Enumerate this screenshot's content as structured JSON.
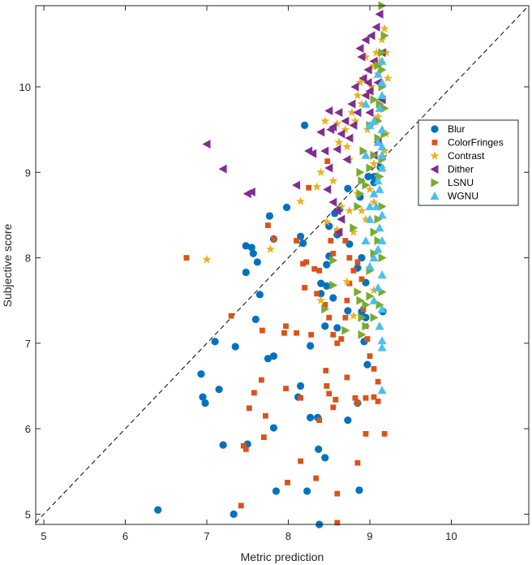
{
  "chart_data": {
    "type": "scatter",
    "xlabel": "Metric prediction",
    "ylabel": "Subjective score",
    "xlim": [
      4.9,
      10.95
    ],
    "ylim": [
      4.88,
      10.95
    ],
    "x_ticks": [
      5,
      6,
      7,
      8,
      9,
      10
    ],
    "y_ticks": [
      5,
      6,
      7,
      8,
      9,
      10
    ],
    "grid": false,
    "legend_position": "right",
    "reference_line": {
      "type": "identity",
      "style": "dashed",
      "color": "#000000"
    },
    "series": [
      {
        "name": "Blur",
        "marker": "circle",
        "color": "#0072BD",
        "points": [
          [
            6.4,
            5.05
          ],
          [
            7.33,
            5.0
          ],
          [
            8.38,
            4.88
          ],
          [
            8.87,
            5.28
          ],
          [
            7.85,
            5.27
          ],
          [
            8.23,
            5.27
          ],
          [
            8.45,
            5.66
          ],
          [
            8.37,
            5.76
          ],
          [
            7.2,
            5.81
          ],
          [
            7.5,
            5.82
          ],
          [
            7.82,
            6.01
          ],
          [
            8.27,
            6.13
          ],
          [
            8.36,
            6.13
          ],
          [
            8.73,
            6.1
          ],
          [
            6.95,
            6.37
          ],
          [
            6.98,
            6.3
          ],
          [
            7.15,
            6.46
          ],
          [
            8.12,
            6.37
          ],
          [
            8.15,
            6.5
          ],
          [
            8.85,
            6.3
          ],
          [
            6.93,
            6.64
          ],
          [
            8.97,
            6.75
          ],
          [
            8.93,
            7.02
          ],
          [
            7.1,
            7.02
          ],
          [
            7.35,
            6.96
          ],
          [
            7.75,
            6.82
          ],
          [
            7.82,
            6.85
          ],
          [
            8.27,
            6.97
          ],
          [
            8.45,
            7.2
          ],
          [
            8.6,
            7.18
          ],
          [
            8.73,
            7.38
          ],
          [
            8.9,
            7.37
          ],
          [
            8.95,
            7.3
          ],
          [
            9.16,
            7.37
          ],
          [
            7.6,
            7.28
          ],
          [
            8.4,
            7.58
          ],
          [
            8.47,
            7.67
          ],
          [
            8.4,
            7.7
          ],
          [
            8.55,
            7.53
          ],
          [
            8.95,
            7.71
          ],
          [
            7.48,
            7.83
          ],
          [
            7.65,
            7.57
          ],
          [
            7.55,
            8.12
          ],
          [
            7.57,
            8.05
          ],
          [
            7.62,
            7.95
          ],
          [
            7.48,
            8.14
          ],
          [
            7.82,
            8.22
          ],
          [
            8.15,
            8.25
          ],
          [
            8.18,
            8.17
          ],
          [
            8.47,
            7.92
          ],
          [
            8.5,
            8.02
          ],
          [
            8.85,
            7.88
          ],
          [
            8.9,
            8.0
          ],
          [
            7.77,
            8.49
          ],
          [
            7.98,
            8.59
          ],
          [
            8.5,
            8.37
          ],
          [
            8.6,
            8.27
          ],
          [
            8.75,
            8.16
          ],
          [
            8.57,
            8.52
          ],
          [
            8.73,
            8.81
          ],
          [
            8.88,
            8.71
          ],
          [
            8.98,
            8.95
          ],
          [
            9.05,
            8.95
          ],
          [
            9.05,
            8.88
          ],
          [
            9.13,
            9.06
          ],
          [
            8.2,
            9.55
          ],
          [
            8.63,
            8.57
          ]
        ]
      },
      {
        "name": "ColorFringes",
        "marker": "square",
        "color": "#D95319",
        "points": [
          [
            6.75,
            8.0
          ],
          [
            7.3,
            7.32
          ],
          [
            7.68,
            7.15
          ],
          [
            7.95,
            7.12
          ],
          [
            7.97,
            7.2
          ],
          [
            8.1,
            7.12
          ],
          [
            8.28,
            7.1
          ],
          [
            8.38,
            7.85
          ],
          [
            8.35,
            7.58
          ],
          [
            8.45,
            7.45
          ],
          [
            8.5,
            7.3
          ],
          [
            8.55,
            7.1
          ],
          [
            8.6,
            7.0
          ],
          [
            8.65,
            7.05
          ],
          [
            8.7,
            7.3
          ],
          [
            8.72,
            7.5
          ],
          [
            8.75,
            7.7
          ],
          [
            8.8,
            7.85
          ],
          [
            8.85,
            7.95
          ],
          [
            8.9,
            7.75
          ],
          [
            8.92,
            7.4
          ],
          [
            8.95,
            7.2
          ],
          [
            8.97,
            7.05
          ],
          [
            9.0,
            6.85
          ],
          [
            9.05,
            6.7
          ],
          [
            9.1,
            6.55
          ],
          [
            9.1,
            6.32
          ],
          [
            7.42,
            5.1
          ],
          [
            7.45,
            5.8
          ],
          [
            7.48,
            5.76
          ],
          [
            7.52,
            6.24
          ],
          [
            7.58,
            6.42
          ],
          [
            7.67,
            6.57
          ],
          [
            7.7,
            5.9
          ],
          [
            7.72,
            6.15
          ],
          [
            7.97,
            6.47
          ],
          [
            7.99,
            5.37
          ],
          [
            8.15,
            5.62
          ],
          [
            8.15,
            6.36
          ],
          [
            8.34,
            5.42
          ],
          [
            8.38,
            6.1
          ],
          [
            8.46,
            6.68
          ],
          [
            8.47,
            6.5
          ],
          [
            8.5,
            6.41
          ],
          [
            8.55,
            6.25
          ],
          [
            8.58,
            6.34
          ],
          [
            8.6,
            5.24
          ],
          [
            8.6,
            4.9
          ],
          [
            8.72,
            6.6
          ],
          [
            8.82,
            6.36
          ],
          [
            8.85,
            6.3
          ],
          [
            8.85,
            5.6
          ],
          [
            8.95,
            6.36
          ],
          [
            8.95,
            5.94
          ],
          [
            9.05,
            6.37
          ],
          [
            9.18,
            5.94
          ],
          [
            7.75,
            8.38
          ],
          [
            7.82,
            8.22
          ],
          [
            8.1,
            8.2
          ],
          [
            8.18,
            7.93
          ],
          [
            8.22,
            7.95
          ],
          [
            8.25,
            8.82
          ],
          [
            8.48,
            9.13
          ],
          [
            8.52,
            8.2
          ],
          [
            8.55,
            8.05
          ],
          [
            8.6,
            8.3
          ],
          [
            8.7,
            8.2
          ],
          [
            8.75,
            8.0
          ],
          [
            8.2,
            7.65
          ],
          [
            8.32,
            7.87
          ]
        ]
      },
      {
        "name": "Contrast",
        "marker": "star",
        "color": "#EDB120",
        "points": [
          [
            7.0,
            7.98
          ],
          [
            7.78,
            8.1
          ],
          [
            8.15,
            8.66
          ],
          [
            8.35,
            8.83
          ],
          [
            8.4,
            9.0
          ],
          [
            8.45,
            9.6
          ],
          [
            8.55,
            8.9
          ],
          [
            8.6,
            9.57
          ],
          [
            8.62,
            9.35
          ],
          [
            8.7,
            9.5
          ],
          [
            8.72,
            9.3
          ],
          [
            8.75,
            9.15
          ],
          [
            8.78,
            9.7
          ],
          [
            8.82,
            9.6
          ],
          [
            8.85,
            9.9
          ],
          [
            8.88,
            10.05
          ],
          [
            8.9,
            9.8
          ],
          [
            8.92,
            10.1
          ],
          [
            8.95,
            10.35
          ],
          [
            8.97,
            9.5
          ],
          [
            9.0,
            10.2
          ],
          [
            9.02,
            10.0
          ],
          [
            9.05,
            10.25
          ],
          [
            9.08,
            10.4
          ],
          [
            9.1,
            10.15
          ],
          [
            9.12,
            10.3
          ],
          [
            9.15,
            10.55
          ],
          [
            9.18,
            10.68
          ],
          [
            9.2,
            10.4
          ],
          [
            9.22,
            10.1
          ],
          [
            8.47,
            8.42
          ],
          [
            8.6,
            8.33
          ],
          [
            8.65,
            8.6
          ],
          [
            8.75,
            8.55
          ],
          [
            8.8,
            8.3
          ],
          [
            8.85,
            8.75
          ],
          [
            8.9,
            8.55
          ],
          [
            8.95,
            8.45
          ],
          [
            9.0,
            8.8
          ],
          [
            9.05,
            8.65
          ],
          [
            8.72,
            7.72
          ],
          [
            8.4,
            7.5
          ],
          [
            8.8,
            7.32
          ],
          [
            9.05,
            7.62
          ],
          [
            9.1,
            8.95
          ],
          [
            9.15,
            9.05
          ],
          [
            9.18,
            9.25
          ],
          [
            9.2,
            9.45
          ],
          [
            9.05,
            9.1
          ],
          [
            9.1,
            9.65
          ]
        ]
      },
      {
        "name": "Dither",
        "marker": "triangle-left",
        "color": "#7E2F8E",
        "points": [
          [
            7.0,
            9.33
          ],
          [
            7.2,
            9.04
          ],
          [
            7.5,
            8.75
          ],
          [
            7.55,
            8.77
          ],
          [
            8.1,
            8.85
          ],
          [
            8.25,
            9.25
          ],
          [
            8.3,
            9.22
          ],
          [
            8.4,
            9.47
          ],
          [
            8.45,
            9.25
          ],
          [
            8.5,
            9.05
          ],
          [
            8.52,
            9.5
          ],
          [
            8.55,
            9.53
          ],
          [
            8.6,
            9.27
          ],
          [
            8.62,
            9.7
          ],
          [
            8.65,
            9.45
          ],
          [
            8.7,
            9.6
          ],
          [
            8.72,
            9.15
          ],
          [
            8.75,
            9.4
          ],
          [
            8.78,
            9.8
          ],
          [
            8.8,
            9.55
          ],
          [
            8.82,
            10.0
          ],
          [
            8.85,
            9.7
          ],
          [
            8.88,
            10.45
          ],
          [
            8.9,
            10.35
          ],
          [
            8.92,
            10.1
          ],
          [
            8.95,
            10.55
          ],
          [
            8.98,
            10.2
          ],
          [
            9.0,
            9.95
          ],
          [
            9.02,
            10.6
          ],
          [
            9.05,
            10.3
          ],
          [
            9.08,
            10.7
          ],
          [
            9.1,
            10.05
          ],
          [
            9.12,
            10.85
          ],
          [
            9.15,
            10.4
          ],
          [
            8.48,
            8.8
          ],
          [
            8.55,
            8.65
          ],
          [
            8.6,
            8.55
          ],
          [
            8.62,
            8.3
          ],
          [
            8.65,
            8.45
          ],
          [
            8.95,
            9.9
          ],
          [
            9.0,
            9.7
          ],
          [
            9.05,
            9.2
          ],
          [
            9.1,
            9.35
          ],
          [
            9.15,
            9.85
          ],
          [
            8.98,
            10.05
          ],
          [
            8.5,
            9.72
          ]
        ]
      },
      {
        "name": "LSNU",
        "marker": "triangle-right",
        "color": "#77AC30",
        "points": [
          [
            9.15,
            10.95
          ],
          [
            8.45,
            7.4
          ],
          [
            8.55,
            7.68
          ],
          [
            8.55,
            7.97
          ],
          [
            8.85,
            7.6
          ],
          [
            8.88,
            7.5
          ],
          [
            8.9,
            7.3
          ],
          [
            8.9,
            7.1
          ],
          [
            8.95,
            7.45
          ],
          [
            9.0,
            7.55
          ],
          [
            9.0,
            7.85
          ],
          [
            9.05,
            8.05
          ],
          [
            9.05,
            8.3
          ],
          [
            9.1,
            8.2
          ],
          [
            9.1,
            8.45
          ],
          [
            9.12,
            7.45
          ],
          [
            9.15,
            7.6
          ],
          [
            9.15,
            8.0
          ],
          [
            9.15,
            8.6
          ],
          [
            8.8,
            8.35
          ],
          [
            8.85,
            8.6
          ],
          [
            8.88,
            8.75
          ],
          [
            8.9,
            8.9
          ],
          [
            8.95,
            8.85
          ],
          [
            9.0,
            9.05
          ],
          [
            9.05,
            9.2
          ],
          [
            9.1,
            9.4
          ],
          [
            9.1,
            9.6
          ],
          [
            9.12,
            9.8
          ],
          [
            9.15,
            10.0
          ],
          [
            9.15,
            10.2
          ],
          [
            9.15,
            10.4
          ],
          [
            9.18,
            10.6
          ],
          [
            9.1,
            10.25
          ],
          [
            9.05,
            9.85
          ],
          [
            9.0,
            9.55
          ],
          [
            8.92,
            9.25
          ],
          [
            8.88,
            9.0
          ],
          [
            9.12,
            8.95
          ],
          [
            9.15,
            9.15
          ],
          [
            9.18,
            9.45
          ],
          [
            9.18,
            9.75
          ],
          [
            8.7,
            7.15
          ],
          [
            8.95,
            7.2
          ],
          [
            9.05,
            7.3
          ]
        ]
      },
      {
        "name": "WGNU",
        "marker": "triangle-up",
        "color": "#4DBEEE",
        "points": [
          [
            9.15,
            6.45
          ],
          [
            9.15,
            6.95
          ],
          [
            9.15,
            7.03
          ],
          [
            9.12,
            7.2
          ],
          [
            9.15,
            7.4
          ],
          [
            9.05,
            7.5
          ],
          [
            9.1,
            7.65
          ],
          [
            9.15,
            7.8
          ],
          [
            9.0,
            7.9
          ],
          [
            9.05,
            8.0
          ],
          [
            9.1,
            8.1
          ],
          [
            9.15,
            8.2
          ],
          [
            9.12,
            8.35
          ],
          [
            9.15,
            8.5
          ],
          [
            9.0,
            8.6
          ],
          [
            9.05,
            8.75
          ],
          [
            9.1,
            8.9
          ],
          [
            9.15,
            9.05
          ],
          [
            9.15,
            9.2
          ],
          [
            9.1,
            9.35
          ],
          [
            9.15,
            9.5
          ],
          [
            9.05,
            9.6
          ],
          [
            9.12,
            9.75
          ],
          [
            9.15,
            9.9
          ],
          [
            9.15,
            10.05
          ],
          [
            9.1,
            10.15
          ],
          [
            9.15,
            10.3
          ],
          [
            8.95,
            9.8
          ],
          [
            9.0,
            9.55
          ],
          [
            8.95,
            9.2
          ],
          [
            9.0,
            8.45
          ],
          [
            8.95,
            8.2
          ],
          [
            9.08,
            8.6
          ],
          [
            9.12,
            8.8
          ],
          [
            9.15,
            9.3
          ]
        ]
      }
    ]
  }
}
